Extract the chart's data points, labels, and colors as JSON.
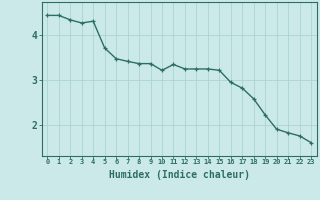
{
  "x": [
    0,
    1,
    2,
    3,
    4,
    5,
    6,
    7,
    8,
    9,
    10,
    11,
    12,
    13,
    14,
    15,
    16,
    17,
    18,
    19,
    20,
    21,
    22,
    23
  ],
  "y": [
    4.45,
    4.45,
    4.35,
    4.28,
    4.32,
    3.72,
    3.48,
    3.42,
    3.37,
    3.37,
    3.22,
    3.35,
    3.25,
    3.25,
    3.25,
    3.22,
    2.95,
    2.82,
    2.58,
    2.22,
    1.9,
    1.82,
    1.75,
    1.6
  ],
  "line_color": "#2d6e63",
  "marker": "+",
  "markersize": 3,
  "linewidth": 1.0,
  "xlabel": "Humidex (Indice chaleur)",
  "xlabel_fontsize": 7,
  "xlabel_fontweight": "bold",
  "yticks": [
    2,
    3,
    4
  ],
  "xtick_labels": [
    "0",
    "1",
    "2",
    "3",
    "4",
    "5",
    "6",
    "7",
    "8",
    "9",
    "10",
    "11",
    "12",
    "13",
    "14",
    "15",
    "16",
    "17",
    "18",
    "19",
    "20",
    "21",
    "22",
    "23"
  ],
  "xlim": [
    -0.5,
    23.5
  ],
  "ylim": [
    1.3,
    4.75
  ],
  "bg_color": "#cce9e9",
  "grid_color": "#aad4d4",
  "tick_color": "#2d6e63",
  "ytick_fontsize": 7,
  "xtick_fontsize": 5,
  "spine_color": "#2d6e63"
}
